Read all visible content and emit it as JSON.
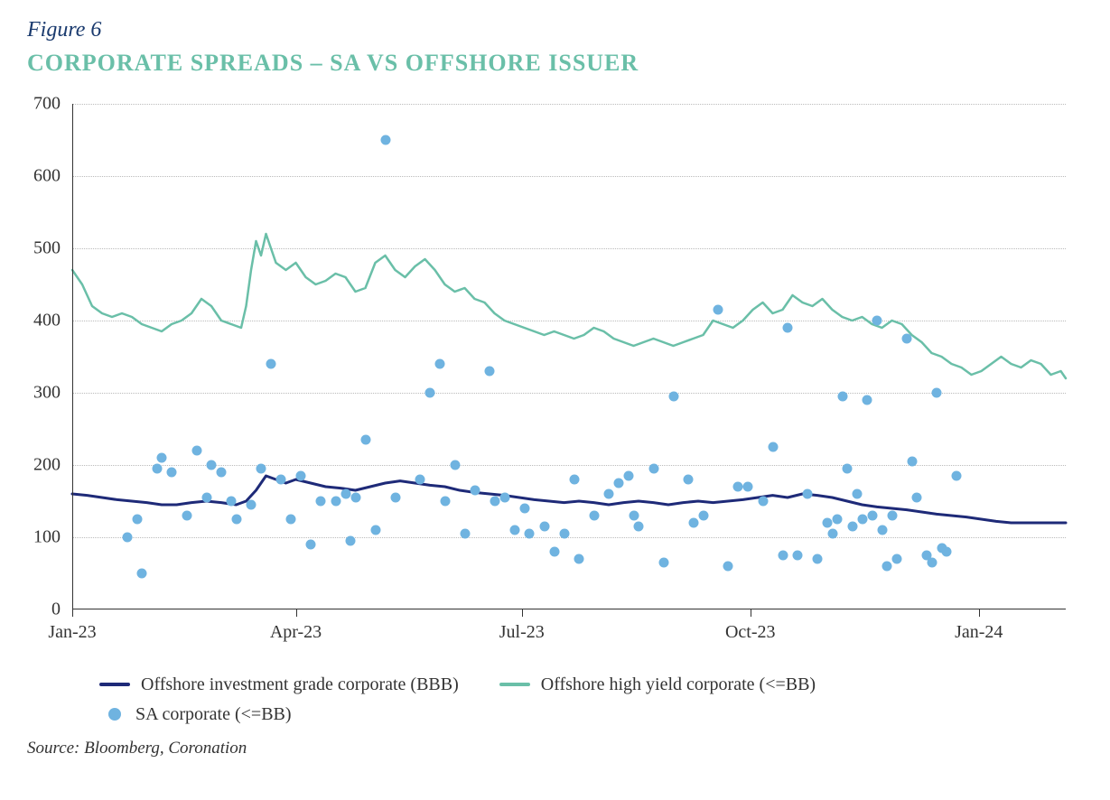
{
  "figure_label": "Figure 6",
  "title": "CORPORATE SPREADS – SA VS OFFSHORE ISSUER",
  "source": "Source: Bloomberg, Coronation",
  "colors": {
    "figure_label": "#1a3a6e",
    "title": "#6abfa8",
    "axis": "#333333",
    "grid": "#bbbbbb",
    "ig_line": "#1e2a78",
    "hy_line": "#6abfa8",
    "scatter": "#6fb3e0",
    "text": "#333333",
    "background": "#ffffff"
  },
  "y_axis": {
    "min": 0,
    "max": 700,
    "ticks": [
      0,
      100,
      200,
      300,
      400,
      500,
      600,
      700
    ]
  },
  "x_axis": {
    "min": 0,
    "max": 400,
    "ticks": [
      {
        "pos": 0,
        "label": "Jan-23"
      },
      {
        "pos": 90,
        "label": "Apr-23"
      },
      {
        "pos": 181,
        "label": "Jul-23"
      },
      {
        "pos": 273,
        "label": "Oct-23"
      },
      {
        "pos": 365,
        "label": "Jan-24"
      }
    ]
  },
  "legend": {
    "items": [
      {
        "type": "line",
        "color_key": "ig_line",
        "label": "Offshore investment grade corporate  (BBB)"
      },
      {
        "type": "line",
        "color_key": "hy_line",
        "label": "Offshore high yield corporate (<=BB)"
      },
      {
        "type": "dot",
        "color_key": "scatter",
        "label": "SA corporate (<=BB)"
      }
    ]
  },
  "series": {
    "offshore_ig": {
      "type": "line",
      "color_key": "ig_line",
      "width": 3,
      "points": [
        [
          0,
          160
        ],
        [
          6,
          158
        ],
        [
          12,
          155
        ],
        [
          18,
          152
        ],
        [
          24,
          150
        ],
        [
          30,
          148
        ],
        [
          36,
          145
        ],
        [
          42,
          145
        ],
        [
          48,
          148
        ],
        [
          54,
          150
        ],
        [
          60,
          148
        ],
        [
          66,
          145
        ],
        [
          70,
          150
        ],
        [
          74,
          165
        ],
        [
          78,
          185
        ],
        [
          82,
          180
        ],
        [
          86,
          175
        ],
        [
          90,
          180
        ],
        [
          96,
          175
        ],
        [
          102,
          170
        ],
        [
          108,
          168
        ],
        [
          114,
          165
        ],
        [
          120,
          170
        ],
        [
          126,
          175
        ],
        [
          132,
          178
        ],
        [
          138,
          175
        ],
        [
          144,
          172
        ],
        [
          150,
          170
        ],
        [
          156,
          165
        ],
        [
          162,
          162
        ],
        [
          168,
          160
        ],
        [
          174,
          158
        ],
        [
          180,
          155
        ],
        [
          186,
          152
        ],
        [
          192,
          150
        ],
        [
          198,
          148
        ],
        [
          204,
          150
        ],
        [
          210,
          148
        ],
        [
          216,
          145
        ],
        [
          222,
          148
        ],
        [
          228,
          150
        ],
        [
          234,
          148
        ],
        [
          240,
          145
        ],
        [
          246,
          148
        ],
        [
          252,
          150
        ],
        [
          258,
          148
        ],
        [
          264,
          150
        ],
        [
          270,
          152
        ],
        [
          276,
          155
        ],
        [
          282,
          158
        ],
        [
          288,
          155
        ],
        [
          294,
          160
        ],
        [
          300,
          158
        ],
        [
          306,
          155
        ],
        [
          312,
          150
        ],
        [
          318,
          145
        ],
        [
          324,
          142
        ],
        [
          330,
          140
        ],
        [
          336,
          138
        ],
        [
          342,
          135
        ],
        [
          348,
          132
        ],
        [
          354,
          130
        ],
        [
          360,
          128
        ],
        [
          366,
          125
        ],
        [
          372,
          122
        ],
        [
          378,
          120
        ],
        [
          384,
          120
        ],
        [
          390,
          120
        ],
        [
          396,
          120
        ],
        [
          400,
          120
        ]
      ]
    },
    "offshore_hy": {
      "type": "line",
      "color_key": "hy_line",
      "width": 2.5,
      "points": [
        [
          0,
          470
        ],
        [
          4,
          450
        ],
        [
          8,
          420
        ],
        [
          12,
          410
        ],
        [
          16,
          405
        ],
        [
          20,
          410
        ],
        [
          24,
          405
        ],
        [
          28,
          395
        ],
        [
          32,
          390
        ],
        [
          36,
          385
        ],
        [
          40,
          395
        ],
        [
          44,
          400
        ],
        [
          48,
          410
        ],
        [
          52,
          430
        ],
        [
          56,
          420
        ],
        [
          60,
          400
        ],
        [
          64,
          395
        ],
        [
          68,
          390
        ],
        [
          70,
          420
        ],
        [
          72,
          470
        ],
        [
          74,
          510
        ],
        [
          76,
          490
        ],
        [
          78,
          520
        ],
        [
          80,
          500
        ],
        [
          82,
          480
        ],
        [
          86,
          470
        ],
        [
          90,
          480
        ],
        [
          94,
          460
        ],
        [
          98,
          450
        ],
        [
          102,
          455
        ],
        [
          106,
          465
        ],
        [
          110,
          460
        ],
        [
          114,
          440
        ],
        [
          118,
          445
        ],
        [
          122,
          480
        ],
        [
          126,
          490
        ],
        [
          130,
          470
        ],
        [
          134,
          460
        ],
        [
          138,
          475
        ],
        [
          142,
          485
        ],
        [
          146,
          470
        ],
        [
          150,
          450
        ],
        [
          154,
          440
        ],
        [
          158,
          445
        ],
        [
          162,
          430
        ],
        [
          166,
          425
        ],
        [
          170,
          410
        ],
        [
          174,
          400
        ],
        [
          178,
          395
        ],
        [
          182,
          390
        ],
        [
          186,
          385
        ],
        [
          190,
          380
        ],
        [
          194,
          385
        ],
        [
          198,
          380
        ],
        [
          202,
          375
        ],
        [
          206,
          380
        ],
        [
          210,
          390
        ],
        [
          214,
          385
        ],
        [
          218,
          375
        ],
        [
          222,
          370
        ],
        [
          226,
          365
        ],
        [
          230,
          370
        ],
        [
          234,
          375
        ],
        [
          238,
          370
        ],
        [
          242,
          365
        ],
        [
          246,
          370
        ],
        [
          250,
          375
        ],
        [
          254,
          380
        ],
        [
          258,
          400
        ],
        [
          262,
          395
        ],
        [
          266,
          390
        ],
        [
          270,
          400
        ],
        [
          274,
          415
        ],
        [
          278,
          425
        ],
        [
          282,
          410
        ],
        [
          286,
          415
        ],
        [
          290,
          435
        ],
        [
          294,
          425
        ],
        [
          298,
          420
        ],
        [
          302,
          430
        ],
        [
          306,
          415
        ],
        [
          310,
          405
        ],
        [
          314,
          400
        ],
        [
          318,
          405
        ],
        [
          322,
          395
        ],
        [
          326,
          390
        ],
        [
          330,
          400
        ],
        [
          334,
          395
        ],
        [
          338,
          380
        ],
        [
          342,
          370
        ],
        [
          346,
          355
        ],
        [
          350,
          350
        ],
        [
          354,
          340
        ],
        [
          358,
          335
        ],
        [
          362,
          325
        ],
        [
          366,
          330
        ],
        [
          370,
          340
        ],
        [
          374,
          350
        ],
        [
          378,
          340
        ],
        [
          382,
          335
        ],
        [
          386,
          345
        ],
        [
          390,
          340
        ],
        [
          394,
          325
        ],
        [
          398,
          330
        ],
        [
          400,
          320
        ]
      ]
    },
    "sa_corporate": {
      "type": "scatter",
      "color_key": "scatter",
      "marker_size": 11,
      "points": [
        [
          22,
          100
        ],
        [
          26,
          125
        ],
        [
          28,
          50
        ],
        [
          34,
          195
        ],
        [
          36,
          210
        ],
        [
          40,
          190
        ],
        [
          46,
          130
        ],
        [
          50,
          220
        ],
        [
          54,
          155
        ],
        [
          56,
          200
        ],
        [
          60,
          190
        ],
        [
          64,
          150
        ],
        [
          66,
          125
        ],
        [
          72,
          145
        ],
        [
          76,
          195
        ],
        [
          80,
          340
        ],
        [
          84,
          180
        ],
        [
          88,
          125
        ],
        [
          92,
          185
        ],
        [
          96,
          90
        ],
        [
          100,
          150
        ],
        [
          106,
          150
        ],
        [
          110,
          160
        ],
        [
          112,
          95
        ],
        [
          114,
          155
        ],
        [
          118,
          235
        ],
        [
          122,
          110
        ],
        [
          126,
          650
        ],
        [
          130,
          155
        ],
        [
          140,
          180
        ],
        [
          144,
          300
        ],
        [
          148,
          340
        ],
        [
          150,
          150
        ],
        [
          154,
          200
        ],
        [
          158,
          105
        ],
        [
          162,
          165
        ],
        [
          168,
          330
        ],
        [
          170,
          150
        ],
        [
          174,
          155
        ],
        [
          178,
          110
        ],
        [
          182,
          140
        ],
        [
          184,
          105
        ],
        [
          190,
          115
        ],
        [
          194,
          80
        ],
        [
          198,
          105
        ],
        [
          202,
          180
        ],
        [
          204,
          70
        ],
        [
          210,
          130
        ],
        [
          216,
          160
        ],
        [
          220,
          175
        ],
        [
          224,
          185
        ],
        [
          226,
          130
        ],
        [
          228,
          115
        ],
        [
          234,
          195
        ],
        [
          238,
          65
        ],
        [
          242,
          295
        ],
        [
          248,
          180
        ],
        [
          250,
          120
        ],
        [
          254,
          130
        ],
        [
          260,
          415
        ],
        [
          264,
          60
        ],
        [
          268,
          170
        ],
        [
          272,
          170
        ],
        [
          278,
          150
        ],
        [
          282,
          225
        ],
        [
          286,
          75
        ],
        [
          288,
          390
        ],
        [
          292,
          75
        ],
        [
          296,
          160
        ],
        [
          300,
          70
        ],
        [
          304,
          120
        ],
        [
          306,
          105
        ],
        [
          308,
          125
        ],
        [
          310,
          295
        ],
        [
          312,
          195
        ],
        [
          314,
          115
        ],
        [
          316,
          160
        ],
        [
          318,
          125
        ],
        [
          320,
          290
        ],
        [
          322,
          130
        ],
        [
          324,
          400
        ],
        [
          326,
          110
        ],
        [
          328,
          60
        ],
        [
          330,
          130
        ],
        [
          332,
          70
        ],
        [
          336,
          375
        ],
        [
          338,
          205
        ],
        [
          340,
          155
        ],
        [
          344,
          75
        ],
        [
          346,
          65
        ],
        [
          348,
          300
        ],
        [
          350,
          85
        ],
        [
          352,
          80
        ],
        [
          356,
          185
        ]
      ]
    }
  }
}
